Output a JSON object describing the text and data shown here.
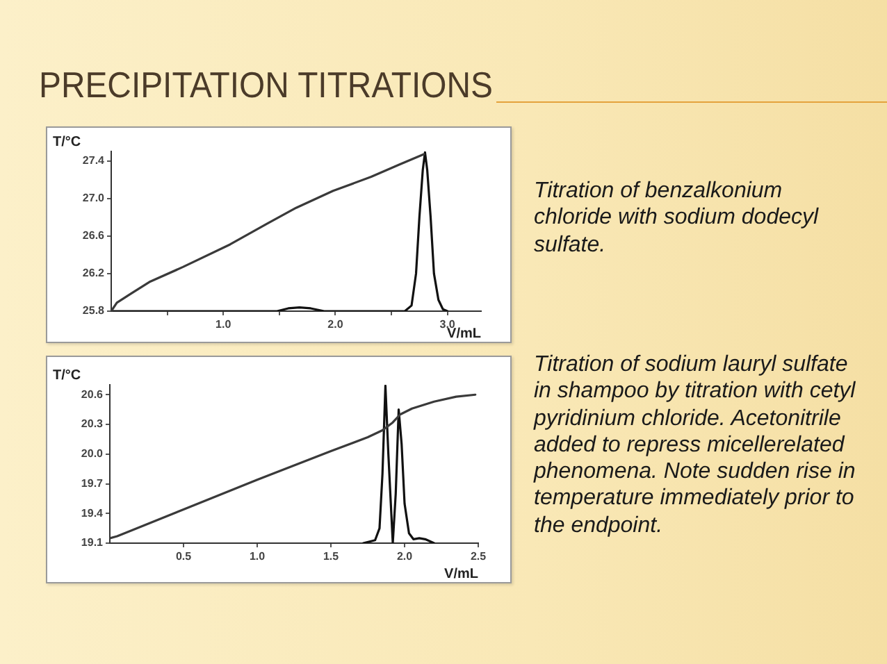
{
  "chart_data": [
    {
      "type": "line",
      "title": "PRECIPITATION TITRATIONS",
      "xlabel": "V/mL",
      "ylabel": "T/°C",
      "annotations": [
        "Titration of benzalkonium chloride with sodium dodecyl sulfate."
      ],
      "xlim": [
        0,
        3.3
      ],
      "ylim": [
        25.8,
        27.5
      ],
      "xticks": [
        {
          "value": 0.5,
          "label": null
        },
        {
          "value": 1,
          "label": "1.0"
        },
        {
          "value": 1.5,
          "label": null
        },
        {
          "value": 2,
          "label": "2.0"
        },
        {
          "value": 2.5,
          "label": null
        },
        {
          "value": 3,
          "label": "3.0"
        }
      ],
      "yticks": [
        25.8,
        26.2,
        26.6,
        {
          "value": 27,
          "label": "27.0"
        },
        27.4
      ],
      "marker": "none",
      "series": [
        {
          "color": "#3a3a3a",
          "x": [
            0,
            0.05,
            0.18,
            0.34,
            0.64,
            1.06,
            1.39,
            1.65,
            1.98,
            2.32,
            2.57,
            2.79
          ],
          "values": [
            25.8,
            25.89,
            25.99,
            26.11,
            26.27,
            26.51,
            26.73,
            26.9,
            27.08,
            27.23,
            27.36,
            27.47
          ]
        },
        {
          "color": "#111111",
          "x": [
            0,
            1.48,
            1.58,
            1.68,
            1.78,
            1.9,
            2.62,
            2.68,
            2.72,
            2.75,
            2.78,
            2.8,
            2.82,
            2.85,
            2.88,
            2.92,
            2.96,
            3.0
          ],
          "values": [
            25.8,
            25.8,
            25.83,
            25.84,
            25.83,
            25.8,
            25.8,
            25.86,
            26.2,
            26.8,
            27.3,
            27.49,
            27.3,
            26.8,
            26.2,
            25.92,
            25.82,
            25.8
          ]
        }
      ]
    },
    {
      "type": "line",
      "xlabel": "V/mL",
      "ylabel": "T/°C",
      "annotations": [
        "Titration of sodium lauryl sulfate in shampoo by titration with cetyl pyridinium chloride. Acetonitrile added to repress micellerelated phenomena. Note sudden rise in temperature immediately prior to the endpoint."
      ],
      "xlim": [
        0,
        2.5
      ],
      "ylim": [
        19.1,
        20.7
      ],
      "xticks": [
        0.5,
        {
          "value": 1,
          "label": "1.0"
        },
        1.5,
        {
          "value": 2,
          "label": "2.0"
        },
        2.5
      ],
      "yticks": [
        19.1,
        19.4,
        19.7,
        {
          "value": 20,
          "label": "20.0"
        },
        20.3,
        20.6
      ],
      "marker": "none",
      "series": [
        {
          "color": "#3a3a3a",
          "x": [
            0,
            0.05,
            0.5,
            1.0,
            1.5,
            1.75,
            1.85,
            1.92,
            1.97,
            2.05,
            2.2,
            2.35,
            2.48
          ],
          "values": [
            19.15,
            19.17,
            19.44,
            19.74,
            20.03,
            20.17,
            20.24,
            20.32,
            20.4,
            20.46,
            20.53,
            20.58,
            20.6
          ]
        },
        {
          "color": "#111111",
          "x": [
            1.72,
            1.8,
            1.83,
            1.85,
            1.87,
            1.89,
            1.91,
            1.92,
            1.94,
            1.96,
            1.98,
            2.0,
            2.03,
            2.06,
            2.1,
            2.14,
            2.2
          ],
          "values": [
            19.1,
            19.13,
            19.25,
            19.8,
            20.69,
            20.0,
            19.4,
            19.1,
            19.6,
            20.45,
            20.1,
            19.5,
            19.2,
            19.14,
            19.15,
            19.14,
            19.1
          ]
        }
      ]
    }
  ]
}
